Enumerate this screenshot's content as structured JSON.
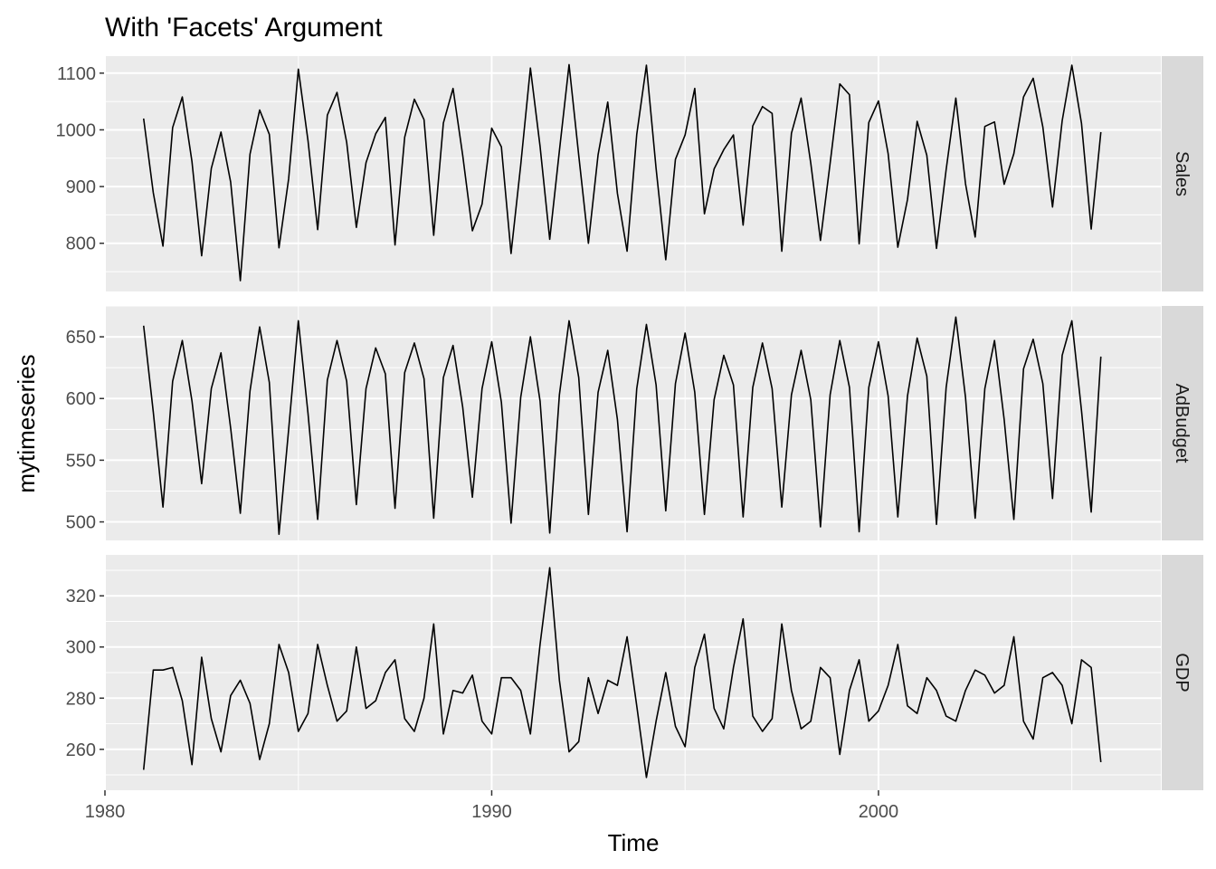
{
  "chart_data": {
    "type": "line",
    "title": "With 'Facets' Argument",
    "xlabel": "Time",
    "ylabel": "mytimeseries",
    "x_start": 1981,
    "x_frequency": 4,
    "xlim": [
      1980,
      2007.3
    ],
    "x_ticks": [
      1980,
      1990,
      2000
    ],
    "x_tick_labels": [
      "1980",
      "1990",
      "2000"
    ],
    "grid": true,
    "legend": "none",
    "line_color": "#000000",
    "panel_background": "#ebebeb",
    "strip_background": "#d9d9d9",
    "series": [
      {
        "name": "Sales",
        "ylim": [
          715,
          1130
        ],
        "y_ticks": [
          800,
          900,
          1000,
          1100
        ],
        "y_tick_labels": [
          "800",
          "900",
          "1000",
          "1100"
        ],
        "values": [
          1020,
          889,
          795,
          1004,
          1058,
          944,
          778,
          932,
          996,
          908,
          734,
          957,
          1035,
          992,
          792,
          914,
          1107,
          981,
          824,
          1026,
          1066,
          978,
          828,
          942,
          993,
          1022,
          797,
          987,
          1054,
          1018,
          814,
          1012,
          1073,
          955,
          822,
          869,
          1003,
          970,
          782,
          938,
          1109,
          971,
          807,
          963,
          1115,
          955,
          800,
          956,
          1049,
          888,
          786,
          992,
          1114,
          932,
          771,
          948,
          991,
          1073,
          852,
          931,
          965,
          991,
          832,
          1007,
          1041,
          1029,
          786,
          994,
          1056,
          941,
          805,
          941,
          1081,
          1062,
          799,
          1013,
          1051,
          958,
          793,
          877,
          1015,
          955,
          791,
          930,
          1056,
          905,
          811,
          1006,
          1014,
          904,
          958,
          1058,
          1091,
          1005,
          864,
          1016,
          1114,
          1011,
          825,
          996
        ]
      },
      {
        "name": "AdBudget",
        "ylim": [
          485,
          675
        ],
        "y_ticks": [
          500,
          550,
          600,
          650
        ],
        "y_tick_labels": [
          "500",
          "550",
          "600",
          "650"
        ],
        "values": [
          659,
          589,
          512,
          614,
          647,
          598,
          531,
          608,
          637,
          576,
          507,
          606,
          658,
          613,
          490,
          575,
          663,
          588,
          502,
          615,
          647,
          614,
          514,
          608,
          641,
          620,
          511,
          621,
          645,
          616,
          503,
          617,
          643,
          593,
          520,
          608,
          646,
          597,
          499,
          601,
          650,
          598,
          491,
          603,
          663,
          617,
          506,
          605,
          639,
          583,
          492,
          608,
          660,
          611,
          509,
          612,
          653,
          605,
          506,
          599,
          635,
          611,
          504,
          609,
          645,
          608,
          512,
          603,
          639,
          599,
          496,
          603,
          647,
          609,
          492,
          609,
          646,
          602,
          504,
          602,
          649,
          618,
          498,
          609,
          666,
          601,
          503,
          608,
          647,
          583,
          502,
          624,
          648,
          612,
          519,
          635,
          663,
          590,
          508,
          634
        ]
      },
      {
        "name": "GDP",
        "ylim": [
          244,
          336
        ],
        "y_ticks": [
          260,
          280,
          300,
          320
        ],
        "y_tick_labels": [
          "260",
          "280",
          "300",
          "320"
        ],
        "values": [
          252,
          291,
          291,
          292,
          279,
          254,
          296,
          272,
          259,
          281,
          287,
          278,
          256,
          270,
          301,
          290,
          267,
          274,
          301,
          285,
          271,
          275,
          300,
          276,
          279,
          290,
          295,
          272,
          267,
          280,
          309,
          266,
          283,
          282,
          289,
          271,
          266,
          288,
          288,
          283,
          266,
          301,
          331,
          287,
          259,
          263,
          288,
          274,
          287,
          285,
          304,
          277,
          249,
          271,
          290,
          269,
          261,
          292,
          305,
          276,
          268,
          292,
          311,
          273,
          267,
          272,
          309,
          283,
          268,
          271,
          292,
          288,
          258,
          283,
          295,
          271,
          275,
          285,
          301,
          277,
          274,
          288,
          283,
          273,
          271,
          283,
          291,
          289,
          282,
          285,
          304,
          271,
          264,
          288,
          290,
          285,
          270,
          295,
          292,
          255
        ]
      }
    ]
  }
}
